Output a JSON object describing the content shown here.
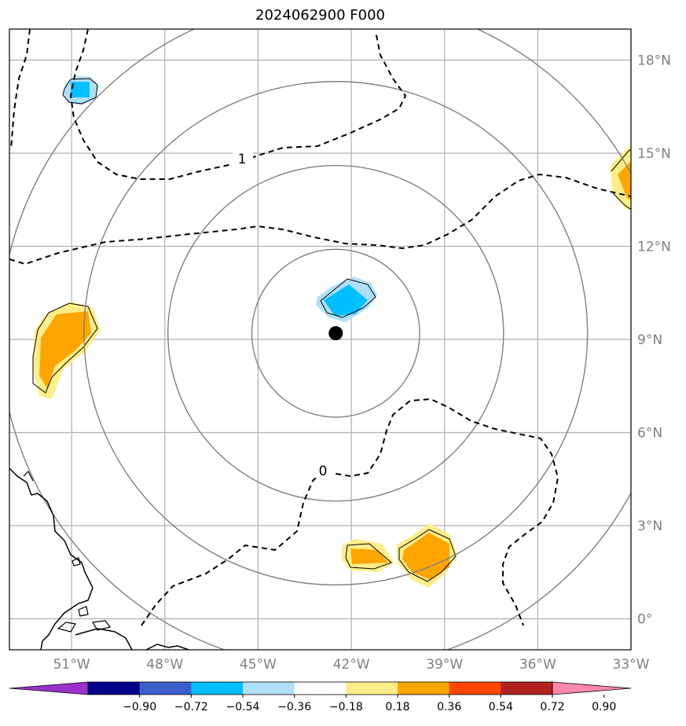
{
  "title": "2024062900 F000",
  "map": {
    "lon_range": [
      -53,
      -33
    ],
    "lat_range": [
      -1,
      19
    ],
    "lat_labels": [
      "0°",
      "3°N",
      "6°N",
      "9°N",
      "12°N",
      "15°N",
      "18°N"
    ],
    "lat_values": [
      0,
      3,
      6,
      9,
      12,
      15,
      18
    ],
    "lon_labels": [
      "51°W",
      "48°W",
      "45°W",
      "42°W",
      "39°W",
      "36°W",
      "33°W"
    ],
    "lon_values": [
      -51,
      -48,
      -45,
      -42,
      -39,
      -36,
      -33
    ],
    "center": {
      "lon": -42.5,
      "lat": 9.2
    },
    "range_rings_deg": [
      2.7,
      5.4,
      8.1,
      10.8
    ],
    "contour_labels": [
      "1",
      "0"
    ],
    "colors": {
      "ring": "#808080",
      "grid": "#b0b0b0",
      "light_blue": "#b0e0f8",
      "cyan": "#00bfff",
      "light_yellow": "#ffee88",
      "orange": "#ffa500"
    }
  },
  "colorbar": {
    "colors": [
      "#9932cc",
      "#00008b",
      "#3a5fcd",
      "#00bfff",
      "#b0e0f8",
      "#ffffff",
      "#ffee88",
      "#ffa500",
      "#ff4500",
      "#b22222",
      "#ff88aa"
    ],
    "ticks": [
      "−0.90",
      "−0.72",
      "−0.54",
      "−0.36",
      "−0.18",
      "0.18",
      "0.36",
      "0.54",
      "0.72",
      "0.90"
    ]
  }
}
